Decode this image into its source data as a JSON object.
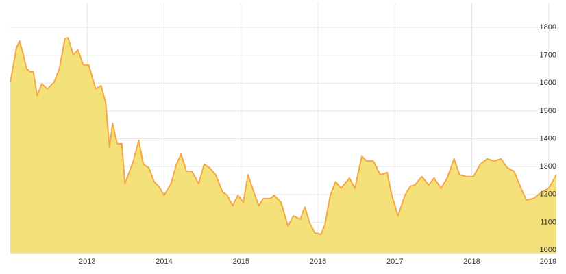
{
  "chart_data": {
    "type": "area",
    "x": [
      2012.0,
      2012.04,
      2012.08,
      2012.12,
      2012.17,
      2012.21,
      2012.26,
      2012.3,
      2012.35,
      2012.41,
      2012.48,
      2012.57,
      2012.64,
      2012.71,
      2012.75,
      2012.82,
      2012.88,
      2012.95,
      2013.02,
      2013.11,
      2013.18,
      2013.24,
      2013.29,
      2013.33,
      2013.39,
      2013.45,
      2013.49,
      2013.55,
      2013.6,
      2013.67,
      2013.73,
      2013.8,
      2013.87,
      2013.93,
      2014.0,
      2014.09,
      2014.16,
      2014.22,
      2014.29,
      2014.36,
      2014.45,
      2014.52,
      2014.59,
      2014.67,
      2014.76,
      2014.82,
      2014.89,
      2014.96,
      2015.03,
      2015.09,
      2015.18,
      2015.23,
      2015.29,
      2015.38,
      2015.43,
      2015.52,
      2015.61,
      2015.68,
      2015.77,
      2015.83,
      2015.89,
      2015.96,
      2016.04,
      2016.09,
      2016.16,
      2016.23,
      2016.3,
      2016.41,
      2016.48,
      2016.57,
      2016.63,
      2016.72,
      2016.81,
      2016.9,
      2016.96,
      2017.04,
      2017.13,
      2017.2,
      2017.26,
      2017.35,
      2017.44,
      2017.51,
      2017.6,
      2017.68,
      2017.77,
      2017.84,
      2017.93,
      2018.02,
      2018.11,
      2018.2,
      2018.29,
      2018.38,
      2018.46,
      2018.55,
      2018.64,
      2018.71,
      2018.8,
      2018.91,
      2019.0,
      2019.1
    ],
    "values": [
      1603,
      1665,
      1727,
      1751,
      1702,
      1653,
      1640,
      1640,
      1554,
      1598,
      1579,
      1603,
      1653,
      1759,
      1763,
      1702,
      1719,
      1665,
      1665,
      1579,
      1591,
      1530,
      1369,
      1456,
      1382,
      1382,
      1239,
      1283,
      1320,
      1394,
      1308,
      1296,
      1246,
      1229,
      1197,
      1239,
      1308,
      1345,
      1283,
      1283,
      1239,
      1308,
      1296,
      1271,
      1209,
      1197,
      1160,
      1197,
      1172,
      1271,
      1197,
      1160,
      1185,
      1185,
      1197,
      1172,
      1086,
      1123,
      1111,
      1155,
      1099,
      1062,
      1057,
      1091,
      1197,
      1246,
      1222,
      1259,
      1222,
      1337,
      1320,
      1320,
      1271,
      1279,
      1197,
      1123,
      1197,
      1229,
      1234,
      1264,
      1234,
      1259,
      1222,
      1259,
      1328,
      1271,
      1264,
      1264,
      1308,
      1328,
      1320,
      1328,
      1296,
      1283,
      1222,
      1180,
      1185,
      1209,
      1222,
      1271
    ],
    "color": "#f5e17a",
    "line_color": "#f4a742",
    "xlim": [
      2012.0,
      2019.1
    ],
    "xticks": [
      2013,
      2014,
      2015,
      2016,
      2017,
      2018,
      2019
    ],
    "ylim": [
      988,
      1886
    ],
    "yticks": [
      1000,
      1100,
      1200,
      1300,
      1400,
      1500,
      1600,
      1700,
      1800
    ],
    "grid": true
  }
}
